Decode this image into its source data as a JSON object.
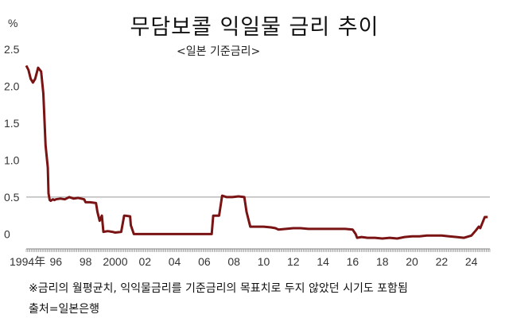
{
  "chart_data": {
    "type": "line",
    "title": "무담보콜 익일물 금리 추이",
    "subtitle": "<일본 기준금리>",
    "unit": "%",
    "xlabel": "",
    "ylabel": "%",
    "ylim": [
      -0.2,
      2.5
    ],
    "xlim": [
      1994.0,
      2025.25
    ],
    "yticks": [
      {
        "value": 2.5,
        "label": "2.5"
      },
      {
        "value": 2.0,
        "label": "2.0"
      },
      {
        "value": 1.5,
        "label": "1.5"
      },
      {
        "value": 1.0,
        "label": "1.0"
      },
      {
        "value": 0.5,
        "label": "0.5"
      },
      {
        "value": 0,
        "label": "0"
      }
    ],
    "xticks": [
      {
        "value": 1994,
        "label": "1994年"
      },
      {
        "value": 1996,
        "label": "96"
      },
      {
        "value": 1998,
        "label": "98"
      },
      {
        "value": 2000,
        "label": "2000"
      },
      {
        "value": 2002,
        "label": "02"
      },
      {
        "value": 2004,
        "label": "04"
      },
      {
        "value": 2006,
        "label": "06"
      },
      {
        "value": 2008,
        "label": "08"
      },
      {
        "value": 2010,
        "label": "10"
      },
      {
        "value": 2012,
        "label": "12"
      },
      {
        "value": 2014,
        "label": "14"
      },
      {
        "value": 2016,
        "label": "16"
      },
      {
        "value": 2018,
        "label": "18"
      },
      {
        "value": 2020,
        "label": "20"
      },
      {
        "value": 2022,
        "label": "22"
      },
      {
        "value": 2024,
        "label": "24"
      }
    ],
    "reference_line": 0.5,
    "grid": false,
    "colors": {
      "line": "#7a1313",
      "reference": "#999999",
      "axis": "#888888"
    },
    "series": [
      {
        "x": [
          1994.0,
          1994.15,
          1994.3,
          1994.45,
          1994.6,
          1994.8,
          1995.0,
          1995.15,
          1995.3,
          1995.45,
          1995.5,
          1995.58,
          1995.65,
          1995.72,
          1995.8,
          1995.9,
          1996.0,
          1996.3,
          1996.6,
          1996.9,
          1997.2,
          1997.5,
          1997.9,
          1998.0,
          1998.3,
          1998.7,
          1998.8,
          1998.95,
          1999.1,
          1999.2,
          1999.5,
          1999.8,
          2000.0,
          2000.4,
          2000.6,
          2000.65,
          2001.0,
          2001.05,
          2001.25,
          2001.3,
          2002.0,
          2006.0,
          2006.5,
          2006.6,
          2007.0,
          2007.2,
          2007.5,
          2007.9,
          2008.3,
          2008.7,
          2008.85,
          2009.1,
          2009.5,
          2010.0,
          2010.5,
          2010.8,
          2011.0,
          2011.5,
          2012.0,
          2012.5,
          2013.0,
          2013.5,
          2014.0,
          2014.5,
          2015.0,
          2015.5,
          2016.0,
          2016.2,
          2016.3,
          2016.6,
          2017.0,
          2017.5,
          2018.0,
          2018.5,
          2019.0,
          2019.5,
          2020.0,
          2020.5,
          2021.0,
          2021.5,
          2022.0,
          2022.5,
          2023.0,
          2023.5,
          2024.0,
          2024.3,
          2024.5,
          2024.6,
          2024.9,
          2025.1
        ],
        "y": [
          2.28,
          2.22,
          2.1,
          2.05,
          2.1,
          2.25,
          2.2,
          1.9,
          1.2,
          0.9,
          0.55,
          0.46,
          0.45,
          0.46,
          0.47,
          0.46,
          0.47,
          0.48,
          0.47,
          0.5,
          0.48,
          0.49,
          0.47,
          0.43,
          0.43,
          0.42,
          0.3,
          0.18,
          0.25,
          0.03,
          0.04,
          0.03,
          0.02,
          0.03,
          0.25,
          0.25,
          0.24,
          0.12,
          0.0,
          0.0,
          0.0,
          0.0,
          0.0,
          0.25,
          0.25,
          0.52,
          0.5,
          0.5,
          0.51,
          0.5,
          0.3,
          0.1,
          0.1,
          0.1,
          0.09,
          0.08,
          0.06,
          0.07,
          0.08,
          0.08,
          0.07,
          0.07,
          0.07,
          0.07,
          0.07,
          0.07,
          0.06,
          0.0,
          -0.05,
          -0.04,
          -0.05,
          -0.05,
          -0.06,
          -0.05,
          -0.06,
          -0.04,
          -0.03,
          -0.03,
          -0.02,
          -0.02,
          -0.02,
          -0.03,
          -0.04,
          -0.05,
          -0.02,
          0.05,
          0.1,
          0.08,
          0.23,
          0.23
        ]
      }
    ]
  },
  "footnote": "※금리의 월평균치, 익익물금리를 기준금리의 목표치로 두지 않았던 시기도 포함됨",
  "source": "출처=일본은행"
}
